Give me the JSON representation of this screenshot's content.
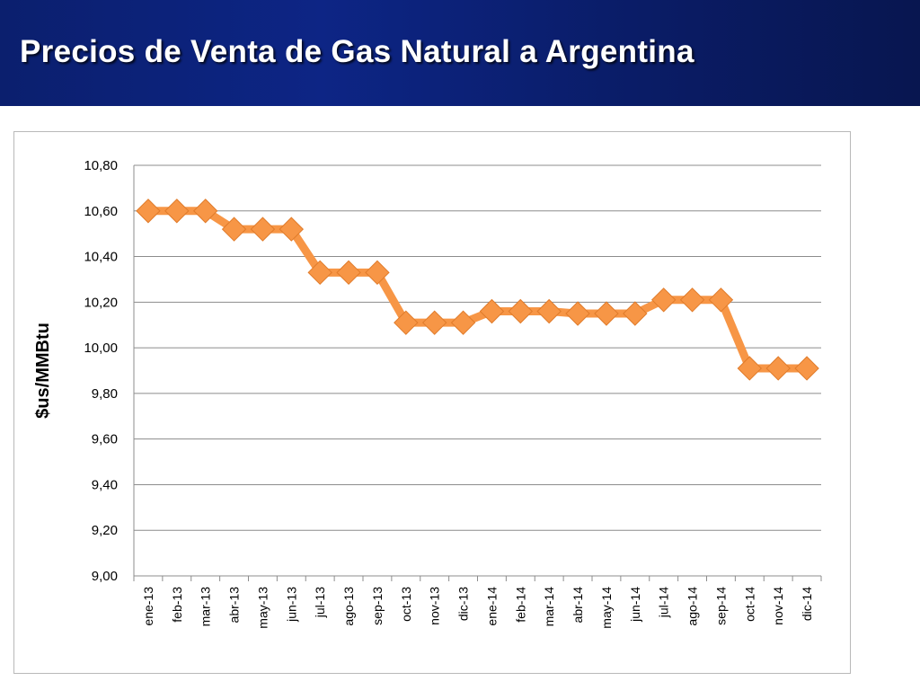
{
  "header": {
    "title": "Precios de Venta de Gas Natural a Argentina",
    "background_color": "#0d2585"
  },
  "chart_data": {
    "type": "line",
    "title": "",
    "xlabel": "",
    "ylabel": "$us/MMBtu",
    "ylim": [
      9.0,
      10.8
    ],
    "ytick_step": 0.2,
    "yticks": [
      "9,00",
      "9,20",
      "9,40",
      "9,60",
      "9,80",
      "10,00",
      "10,20",
      "10,40",
      "10,60",
      "10,80"
    ],
    "grid": true,
    "legend": "none",
    "line_color": "#f79646",
    "categories": [
      "ene-13",
      "feb-13",
      "mar-13",
      "abr-13",
      "may-13",
      "jun-13",
      "jul-13",
      "ago-13",
      "sep-13",
      "oct-13",
      "nov-13",
      "dic-13",
      "ene-14",
      "feb-14",
      "mar-14",
      "abr-14",
      "may-14",
      "jun-14",
      "jul-14",
      "ago-14",
      "sep-14",
      "oct-14",
      "nov-14",
      "dic-14"
    ],
    "values": [
      10.6,
      10.6,
      10.6,
      10.52,
      10.52,
      10.52,
      10.33,
      10.33,
      10.33,
      10.11,
      10.11,
      10.11,
      10.16,
      10.16,
      10.16,
      10.15,
      10.15,
      10.15,
      10.21,
      10.21,
      10.21,
      9.91,
      9.91,
      9.91
    ]
  }
}
